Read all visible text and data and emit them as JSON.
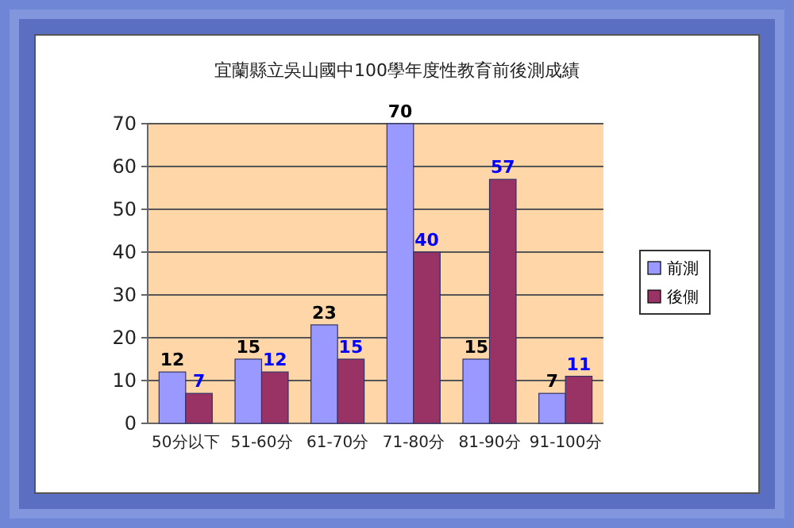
{
  "chart_data": {
    "type": "bar",
    "title": "宜蘭縣立吳山國中100學年度性教育前後測成績",
    "categories": [
      "50分以下",
      "51-60分",
      "61-70分",
      "71-80分",
      "81-90分",
      "91-100分"
    ],
    "series": [
      {
        "name": "前測",
        "color": "#9999ff",
        "values": [
          12,
          15,
          23,
          70,
          15,
          7
        ]
      },
      {
        "name": "後側",
        "color": "#993366",
        "values": [
          7,
          12,
          15,
          40,
          57,
          11
        ]
      }
    ],
    "ylim": [
      0,
      70
    ],
    "yticks": [
      0,
      10,
      20,
      30,
      40,
      50,
      60,
      70
    ],
    "grid": "y",
    "legend": "right",
    "data_labels": true
  }
}
